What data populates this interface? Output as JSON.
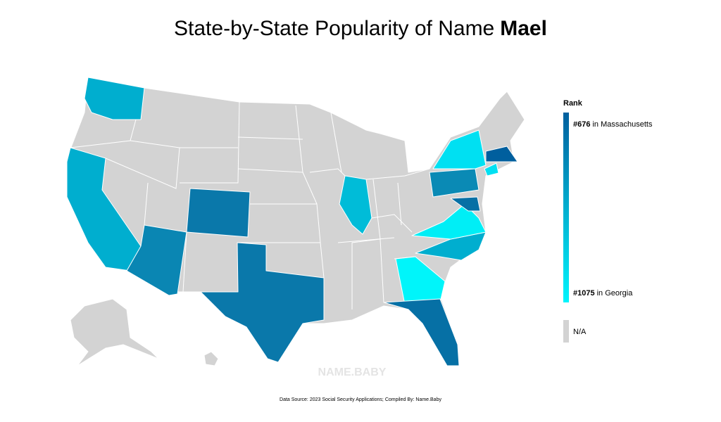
{
  "header": {
    "title": "State-by-State Popularity of Name",
    "name": "Mael"
  },
  "legend": {
    "title": "Rank",
    "top": {
      "rank": "#676",
      "label": "in Massachusetts"
    },
    "bottom": {
      "rank": "#1075",
      "label": "in Georgia"
    },
    "na": "N/A"
  },
  "watermark": "NAME.BABY",
  "footer": "Data Source: 2023 Social Security Applications; Compiled By: Name.Baby"
}
